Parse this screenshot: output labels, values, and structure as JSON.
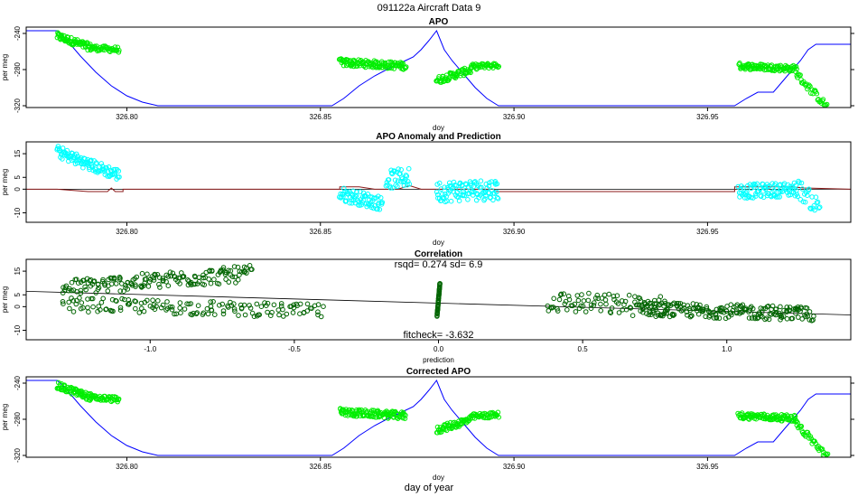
{
  "page": {
    "title": "091122a   Aircraft Data 9",
    "bottom_label": "day of year"
  },
  "chart_data": [
    {
      "type": "line",
      "title": "APO",
      "xlabel": "doy",
      "ylabel": "per meg",
      "xlim": [
        326.774,
        326.987
      ],
      "ylim": [
        -322,
        -233
      ],
      "xticks": [
        326.8,
        326.85,
        326.9,
        326.95
      ],
      "xtick_labels": [
        "326.80",
        "326.85",
        "326.90",
        "326.95"
      ],
      "yticks": [
        -240,
        -280,
        -320
      ],
      "ytick_labels": [
        "-240",
        "-280",
        "-320"
      ],
      "right_ticks": true,
      "series": [
        {
          "color": "#0000ff",
          "style": "line",
          "points": [
            [
              326.774,
              -237
            ],
            [
              326.782,
              -237
            ],
            [
              326.784,
              -245
            ],
            [
              326.788,
              -265
            ],
            [
              326.792,
              -283
            ],
            [
              326.796,
              -298
            ],
            [
              326.8,
              -309
            ],
            [
              326.804,
              -316
            ],
            [
              326.808,
              -320
            ],
            [
              326.812,
              -320
            ],
            [
              326.84,
              -320
            ],
            [
              326.853,
              -320
            ],
            [
              326.856,
              -312
            ],
            [
              326.86,
              -298
            ],
            [
              326.864,
              -287
            ],
            [
              326.868,
              -278
            ],
            [
              326.872,
              -270
            ],
            [
              326.874,
              -266
            ],
            [
              326.876,
              -258
            ],
            [
              326.878,
              -248
            ],
            [
              326.88,
              -237
            ],
            [
              326.882,
              -258
            ],
            [
              326.884,
              -270
            ],
            [
              326.887,
              -285
            ],
            [
              326.89,
              -300
            ],
            [
              326.893,
              -312
            ],
            [
              326.896,
              -320
            ],
            [
              326.92,
              -320
            ],
            [
              326.957,
              -320
            ],
            [
              326.96,
              -312
            ],
            [
              326.963,
              -305
            ],
            [
              326.967,
              -305
            ],
            [
              326.97,
              -290
            ],
            [
              326.974,
              -270
            ],
            [
              326.976,
              -258
            ],
            [
              326.978,
              -252
            ],
            [
              326.987,
              -252
            ]
          ]
        },
        {
          "color": "#00ee00",
          "style": "points",
          "segments": [
            {
              "x0": 326.782,
              "x1": 326.791,
              "y0": -243,
              "y1": -256,
              "spread": 8,
              "n": 70
            },
            {
              "x0": 326.791,
              "x1": 326.798,
              "y0": -256,
              "y1": -258,
              "spread": 6,
              "n": 40
            },
            {
              "x0": 326.855,
              "x1": 326.872,
              "y0": -272,
              "y1": -276,
              "spread": 8,
              "n": 120
            },
            {
              "x0": 326.88,
              "x1": 326.889,
              "y0": -292,
              "y1": -280,
              "spread": 8,
              "n": 60
            },
            {
              "x0": 326.889,
              "x1": 326.896,
              "y0": -277,
              "y1": -275,
              "spread": 6,
              "n": 40
            },
            {
              "x0": 326.958,
              "x1": 326.973,
              "y0": -276,
              "y1": -279,
              "spread": 7,
              "n": 100
            },
            {
              "x0": 326.973,
              "x1": 326.981,
              "y0": -285,
              "y1": -322,
              "spread": 8,
              "n": 35
            }
          ]
        }
      ]
    },
    {
      "type": "line",
      "title": "APO Anomaly and Prediction",
      "xlabel": "doy",
      "ylabel": "per meg",
      "xlim": [
        326.774,
        326.987
      ],
      "ylim": [
        -14,
        20
      ],
      "xticks": [
        326.8,
        326.85,
        326.9,
        326.95
      ],
      "xtick_labels": [
        "326.80",
        "326.85",
        "326.90",
        "326.95"
      ],
      "yticks": [
        15,
        5,
        0,
        -10
      ],
      "ytick_labels": [
        "15",
        "5",
        "0",
        "-10"
      ],
      "hline": 0,
      "series": [
        {
          "color": "#8b1a1a",
          "style": "line",
          "points": [
            [
              326.774,
              0
            ],
            [
              326.782,
              0
            ],
            [
              326.79,
              -1
            ],
            [
              326.795,
              -1
            ],
            [
              326.796,
              0.5
            ],
            [
              326.797,
              -1
            ],
            [
              326.799,
              -1
            ],
            [
              326.799,
              0
            ],
            [
              326.855,
              0
            ],
            [
              326.855,
              1
            ],
            [
              326.86,
              1
            ],
            [
              326.864,
              0
            ],
            [
              326.87,
              0
            ],
            [
              326.873,
              1.5
            ],
            [
              326.876,
              0
            ],
            [
              326.895,
              0
            ],
            [
              326.895,
              -1
            ],
            [
              326.957,
              -1
            ],
            [
              326.957,
              1
            ],
            [
              326.972,
              1
            ],
            [
              326.975,
              0.5
            ],
            [
              326.987,
              0
            ]
          ]
        },
        {
          "color": "#00ffff",
          "style": "points",
          "segments": [
            {
              "x0": 326.782,
              "x1": 326.791,
              "y0": 16,
              "y1": 10,
              "spread": 5,
              "n": 60
            },
            {
              "x0": 326.791,
              "x1": 326.798,
              "y0": 10,
              "y1": 6,
              "spread": 5,
              "n": 40
            },
            {
              "x0": 326.855,
              "x1": 326.866,
              "y0": -2,
              "y1": -6,
              "spread": 6,
              "n": 70
            },
            {
              "x0": 326.867,
              "x1": 326.873,
              "y0": 4,
              "y1": 5,
              "spread": 8,
              "n": 35
            },
            {
              "x0": 326.88,
              "x1": 326.896,
              "y0": -1,
              "y1": 0,
              "spread": 9,
              "n": 100
            },
            {
              "x0": 326.958,
              "x1": 326.973,
              "y0": -1,
              "y1": 0,
              "spread": 6,
              "n": 90
            },
            {
              "x0": 326.973,
              "x1": 326.979,
              "y0": 1,
              "y1": -8,
              "spread": 8,
              "n": 25
            }
          ]
        }
      ]
    },
    {
      "type": "scatter",
      "title": "Correlation",
      "xlabel": "prediction",
      "ylabel": "per meg",
      "xlim": [
        -1.43,
        1.43
      ],
      "ylim": [
        -14,
        20
      ],
      "xticks": [
        -1.0,
        -0.5,
        0.0,
        0.5,
        1.0
      ],
      "xtick_labels": [
        "-1.0",
        "-0.5",
        "0.0",
        "0.5",
        "1.0"
      ],
      "yticks": [
        15,
        5,
        0,
        -10
      ],
      "ytick_labels": [
        "15",
        "5",
        "0",
        "-10"
      ],
      "annotation_top": "rsqd= 0.274 sd= 6.9",
      "annotation_bottom": "fitcheck= -3.632",
      "fit_line": {
        "color": "#000000",
        "points": [
          [
            -1.43,
            6.5
          ],
          [
            1.43,
            -3.5
          ]
        ]
      },
      "series": [
        {
          "color": "#006400",
          "style": "points",
          "segments": [
            {
              "x0": -1.3,
              "x1": -0.65,
              "y0": 8,
              "y1": 14,
              "spread": 7,
              "n": 170
            },
            {
              "x0": -1.3,
              "x1": -0.4,
              "y0": 1,
              "y1": -2,
              "spread": 6,
              "n": 150
            },
            {
              "x0": -0.005,
              "x1": 0.005,
              "y0": -4,
              "y1": 10,
              "spread": 0.5,
              "n": 40
            },
            {
              "x0": 0.38,
              "x1": 0.8,
              "y0": 2,
              "y1": 0,
              "spread": 9,
              "n": 90
            },
            {
              "x0": 0.7,
              "x1": 1.3,
              "y0": -1,
              "y1": -3,
              "spread": 6,
              "n": 200
            }
          ]
        }
      ]
    },
    {
      "type": "line",
      "title": "Corrected APO",
      "xlabel": "doy",
      "ylabel": "per meg",
      "xlim": [
        326.774,
        326.987
      ],
      "ylim": [
        -322,
        -233
      ],
      "xticks": [
        326.8,
        326.85,
        326.9,
        326.95
      ],
      "xtick_labels": [
        "326.80",
        "326.85",
        "326.90",
        "326.95"
      ],
      "yticks": [
        -240,
        -280,
        -320
      ],
      "ytick_labels": [
        "-240",
        "-280",
        "-320"
      ],
      "right_ticks": true,
      "series": [
        {
          "color": "#0000ff",
          "style": "line",
          "points": [
            [
              326.774,
              -237
            ],
            [
              326.782,
              -237
            ],
            [
              326.784,
              -245
            ],
            [
              326.788,
              -265
            ],
            [
              326.792,
              -283
            ],
            [
              326.796,
              -298
            ],
            [
              326.8,
              -309
            ],
            [
              326.804,
              -316
            ],
            [
              326.808,
              -320
            ],
            [
              326.812,
              -320
            ],
            [
              326.84,
              -320
            ],
            [
              326.853,
              -320
            ],
            [
              326.856,
              -312
            ],
            [
              326.86,
              -298
            ],
            [
              326.864,
              -287
            ],
            [
              326.868,
              -278
            ],
            [
              326.872,
              -270
            ],
            [
              326.874,
              -266
            ],
            [
              326.876,
              -258
            ],
            [
              326.878,
              -248
            ],
            [
              326.88,
              -237
            ],
            [
              326.882,
              -258
            ],
            [
              326.884,
              -270
            ],
            [
              326.887,
              -285
            ],
            [
              326.89,
              -300
            ],
            [
              326.893,
              -312
            ],
            [
              326.896,
              -320
            ],
            [
              326.92,
              -320
            ],
            [
              326.957,
              -320
            ],
            [
              326.96,
              -312
            ],
            [
              326.963,
              -305
            ],
            [
              326.967,
              -305
            ],
            [
              326.97,
              -290
            ],
            [
              326.974,
              -270
            ],
            [
              326.976,
              -258
            ],
            [
              326.978,
              -252
            ],
            [
              326.987,
              -252
            ]
          ]
        },
        {
          "color": "#00ee00",
          "style": "points",
          "segments": [
            {
              "x0": 326.782,
              "x1": 326.791,
              "y0": -243,
              "y1": -256,
              "spread": 8,
              "n": 70
            },
            {
              "x0": 326.791,
              "x1": 326.798,
              "y0": -256,
              "y1": -258,
              "spread": 6,
              "n": 40
            },
            {
              "x0": 326.855,
              "x1": 326.872,
              "y0": -272,
              "y1": -276,
              "spread": 8,
              "n": 120
            },
            {
              "x0": 326.88,
              "x1": 326.889,
              "y0": -292,
              "y1": -280,
              "spread": 8,
              "n": 60
            },
            {
              "x0": 326.889,
              "x1": 326.896,
              "y0": -277,
              "y1": -275,
              "spread": 6,
              "n": 40
            },
            {
              "x0": 326.958,
              "x1": 326.973,
              "y0": -276,
              "y1": -279,
              "spread": 7,
              "n": 100
            },
            {
              "x0": 326.973,
              "x1": 326.981,
              "y0": -285,
              "y1": -322,
              "spread": 8,
              "n": 35
            }
          ]
        }
      ]
    }
  ]
}
